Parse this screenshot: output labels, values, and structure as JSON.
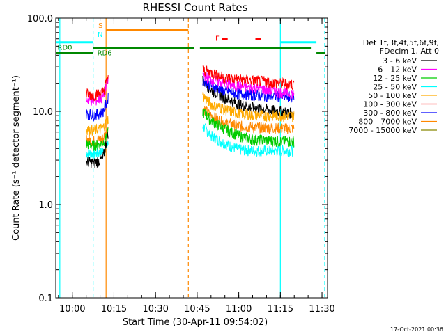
{
  "chart_data": {
    "type": "line",
    "title": "RHESSI Count Rates",
    "xlabel": "Start Time (30-Apr-11 09:54:02)",
    "ylabel": "Count Rate (s⁻¹ detector segment⁻¹)",
    "y_scale": "log",
    "ylim": [
      0.1,
      100.0
    ],
    "xlim": [
      "09:54:02",
      "11:32:00"
    ],
    "x_ticks": [
      "10:00",
      "10:15",
      "10:30",
      "10:45",
      "11:00",
      "11:15",
      "11:30"
    ],
    "y_ticks": [
      "0.1",
      "1.0",
      "10.0",
      "100.0"
    ],
    "legend_header": [
      "Det 1f,3f,4f,5f,6f,9f,",
      "FDecim 1, Att 0"
    ],
    "legend_position": "right",
    "timestamp": "17-Oct-2021 00:36",
    "series": [
      {
        "name": "3 - 6 keV",
        "color": "#000000",
        "x": [
          "10:05",
          "10:08",
          "10:11",
          "10:13",
          "10:47",
          "10:50",
          "10:55",
          "11:00",
          "11:05",
          "11:10",
          "11:15",
          "11:20"
        ],
        "y": [
          2.9,
          2.8,
          3.1,
          6.0,
          22,
          17,
          14,
          12,
          11,
          10.5,
          10,
          9.5
        ]
      },
      {
        "name": "6 - 12 keV",
        "color": "#ff00ff",
        "x": [
          "10:05",
          "10:08",
          "10:11",
          "10:13",
          "10:47",
          "10:50",
          "10:55",
          "11:00",
          "11:05",
          "11:10",
          "11:15",
          "11:20"
        ],
        "y": [
          13.5,
          13,
          14,
          22,
          25,
          22,
          20,
          18.5,
          18,
          17,
          16,
          15.5
        ]
      },
      {
        "name": "12 - 25 keV",
        "color": "#00cc00",
        "x": [
          "10:05",
          "10:08",
          "10:11",
          "10:13",
          "10:47",
          "10:50",
          "10:55",
          "11:00",
          "11:05",
          "11:10",
          "11:15",
          "11:20"
        ],
        "y": [
          4.5,
          4.3,
          4.6,
          6.0,
          10,
          8,
          6.5,
          5.5,
          5.0,
          4.9,
          4.8,
          4.8
        ]
      },
      {
        "name": "25 - 50 keV",
        "color": "#00ffff",
        "x": [
          "10:05",
          "10:08",
          "10:11",
          "10:13",
          "10:47",
          "10:50",
          "10:55",
          "11:00",
          "11:05",
          "11:10",
          "11:15",
          "11:20"
        ],
        "y": [
          3.6,
          3.5,
          3.7,
          4.5,
          7,
          5.5,
          4.5,
          3.9,
          3.8,
          3.8,
          3.8,
          3.8
        ]
      },
      {
        "name": "50 - 100 keV",
        "color": "#ffaa00",
        "x": [
          "10:05",
          "10:08",
          "10:11",
          "10:13",
          "10:47",
          "10:50",
          "10:55",
          "11:00",
          "11:05",
          "11:10",
          "11:15",
          "11:20"
        ],
        "y": [
          6.5,
          6.3,
          6.6,
          8.5,
          15,
          12,
          10.5,
          9.5,
          9.2,
          9.0,
          9.0,
          8.9
        ]
      },
      {
        "name": "100 - 300 keV",
        "color": "#ff0000",
        "x": [
          "10:05",
          "10:08",
          "10:11",
          "10:13",
          "10:47",
          "10:50",
          "10:55",
          "11:00",
          "11:05",
          "11:10",
          "11:15",
          "11:20"
        ],
        "y": [
          15.5,
          15,
          16,
          24,
          28,
          26,
          23,
          22,
          21.5,
          21,
          20,
          19.5
        ]
      },
      {
        "name": "300 - 800 keV",
        "color": "#0000ff",
        "x": [
          "10:05",
          "10:08",
          "10:11",
          "10:13",
          "10:47",
          "10:50",
          "10:55",
          "11:00",
          "11:05",
          "11:10",
          "11:15",
          "11:20"
        ],
        "y": [
          9.5,
          9.2,
          9.8,
          14,
          22,
          19,
          16.5,
          15.5,
          15,
          14.7,
          14.5,
          14.3
        ]
      },
      {
        "name": "800 - 7000 keV",
        "color": "#ff8800",
        "x": [
          "10:05",
          "10:08",
          "10:11",
          "10:13",
          "10:47",
          "10:50",
          "10:55",
          "11:00",
          "11:05",
          "11:10",
          "11:15",
          "11:20"
        ],
        "y": [
          5.0,
          4.8,
          5.1,
          6.5,
          11,
          9,
          7.5,
          7.0,
          6.8,
          6.7,
          6.6,
          6.6
        ]
      },
      {
        "name": "7000 - 15000 keV",
        "color": "#888800",
        "x": [],
        "y": []
      }
    ],
    "annotations": {
      "top_labels": [
        {
          "text": "S",
          "color": "#ff8800"
        },
        {
          "text": "N",
          "color": "#00ffff"
        },
        {
          "text": "F",
          "color": "#ff0000"
        },
        {
          "text": "RD0",
          "color": "#008800"
        },
        {
          "text": "RD6",
          "color": "#008800"
        }
      ],
      "vertical_lines": [
        {
          "time": "09:55:30",
          "color": "#00ffff",
          "style": "solid"
        },
        {
          "time": "10:07:30",
          "color": "#00ffff",
          "style": "dashed"
        },
        {
          "time": "10:12:10",
          "color": "#ff8800",
          "style": "solid"
        },
        {
          "time": "10:41:50",
          "color": "#ff8800",
          "style": "dashed"
        },
        {
          "time": "11:15:00",
          "color": "#00ffff",
          "style": "solid"
        },
        {
          "time": "11:31:00",
          "color": "#00ffff",
          "style": "dashed"
        }
      ],
      "segment_bars": [
        {
          "label": "N",
          "color": "#00ffff",
          "start": "09:54:02",
          "end": "10:07:30",
          "level": 55
        },
        {
          "label": "N",
          "color": "#00ffff",
          "start": "11:15:00",
          "end": "11:28:00",
          "level": 55
        },
        {
          "label": "S",
          "color": "#ff8800",
          "start": "10:12:10",
          "end": "10:41:50",
          "level": 74
        },
        {
          "label": "RD0",
          "color": "#008800",
          "start": "10:07:30",
          "end": "10:43:50",
          "level": 48
        },
        {
          "label": "RD0",
          "color": "#008800",
          "start": "10:46:00",
          "end": "11:26:00",
          "level": 48
        },
        {
          "label": "RD0",
          "color": "#008800",
          "start": "11:28:00",
          "end": "11:31:00",
          "level": 42
        },
        {
          "label": "RD6",
          "color": "#008800",
          "start": "09:54:02",
          "end": "10:07:30",
          "level": 42
        },
        {
          "label": "F",
          "color": "#ff0000",
          "start": "10:54:00",
          "end": "10:56:00",
          "level": 60
        },
        {
          "label": "F",
          "color": "#ff0000",
          "start": "11:06:00",
          "end": "11:08:00",
          "level": 60
        }
      ]
    }
  }
}
